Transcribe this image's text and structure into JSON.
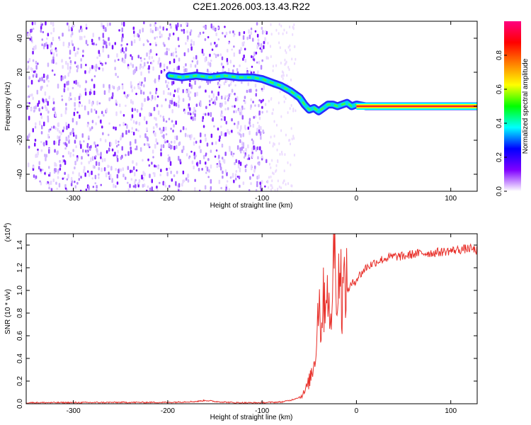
{
  "title": "C2E1.2026.003.13.43.R22",
  "chart_data": [
    {
      "type": "heatmap",
      "xlabel": "Height of straight line (km)",
      "ylabel": "Frequency (Hz)",
      "xlim": [
        -350,
        128
      ],
      "ylim": [
        -50,
        50
      ],
      "x_ticks": [
        -300,
        -200,
        -100,
        0,
        100
      ],
      "x_tick_labels": [
        "-300",
        "-200",
        "-100",
        "0",
        "100"
      ],
      "y_ticks": [
        -40,
        -20,
        0,
        20,
        40
      ],
      "y_tick_labels": [
        "-40",
        "-20",
        "0",
        "20",
        "40"
      ],
      "noise_region_x": [
        -350,
        -95
      ],
      "signal_track": {
        "x": [
          -198,
          -185,
          -170,
          -155,
          -140,
          -125,
          -110,
          -100,
          -90,
          -80,
          -70,
          -60,
          -55,
          -50,
          -45,
          -40,
          -35,
          -30,
          -25,
          -20,
          -15,
          -10,
          -5,
          0,
          10,
          128
        ],
        "y": [
          18,
          17,
          18,
          17,
          18,
          17,
          17,
          16,
          14,
          12,
          9,
          5,
          1,
          -2,
          -1,
          -3,
          -1,
          1,
          1,
          0,
          1,
          2,
          0,
          1,
          0,
          0
        ]
      },
      "colorbar": {
        "label": "Normalized spectral amplitude",
        "range": [
          0,
          1
        ],
        "ticks": [
          0,
          0.2,
          0.4,
          0.6,
          0.8
        ],
        "tick_labels": [
          "0.0",
          "0.2",
          "0.4",
          "0.6",
          "0.8"
        ],
        "colors": [
          "#ffffff",
          "#8000ff",
          "#0000ff",
          "#00ffff",
          "#00ff00",
          "#ffff00",
          "#ff8000",
          "#ff0000",
          "#ff0080"
        ]
      }
    },
    {
      "type": "line",
      "xlabel": "Height of straight line (km)",
      "ylabel": "SNR (10 * v/v)",
      "y_multiplier": "(x10",
      "y_multiplier_exp": "4",
      "y_multiplier_close": ")",
      "xlim": [
        -350,
        128
      ],
      "ylim": [
        0,
        1.5
      ],
      "x_ticks": [
        -300,
        -200,
        -100,
        0,
        100
      ],
      "x_tick_labels": [
        "-300",
        "-200",
        "-100",
        "0",
        "100"
      ],
      "y_ticks": [
        0,
        0.2,
        0.4,
        0.6,
        0.8,
        1.0,
        1.2,
        1.4
      ],
      "y_tick_labels": [
        "0.0",
        "0.2",
        "0.4",
        "0.6",
        "0.8",
        "1.0",
        "1.2",
        "1.4"
      ],
      "color": "#e8302a",
      "series": [
        {
          "x": [
            -350,
            -300,
            -250,
            -200,
            -170,
            -160,
            -150,
            -130,
            -110,
            -100,
            -80,
            -70,
            -60,
            -55,
            -50,
            -45,
            -42,
            -40,
            -38,
            -35,
            -30,
            -28,
            -25,
            -22,
            -20,
            -18,
            -15,
            -12,
            -10,
            -5,
            0,
            5,
            10,
            20,
            30,
            40,
            50,
            60,
            70,
            80,
            90,
            100,
            110,
            120,
            128
          ],
          "y": [
            0.01,
            0.01,
            0.012,
            0.012,
            0.02,
            0.03,
            0.02,
            0.01,
            0.008,
            0.01,
            0.015,
            0.03,
            0.06,
            0.1,
            0.2,
            0.35,
            0.6,
            1.0,
            0.7,
            0.9,
            1.1,
            0.5,
            1.2,
            1.45,
            0.8,
            1.3,
            0.9,
            1.1,
            1.0,
            1.05,
            1.1,
            1.15,
            1.2,
            1.25,
            1.28,
            1.3,
            1.3,
            1.32,
            1.33,
            1.33,
            1.34,
            1.35,
            1.36,
            1.37,
            1.35
          ]
        }
      ]
    }
  ]
}
